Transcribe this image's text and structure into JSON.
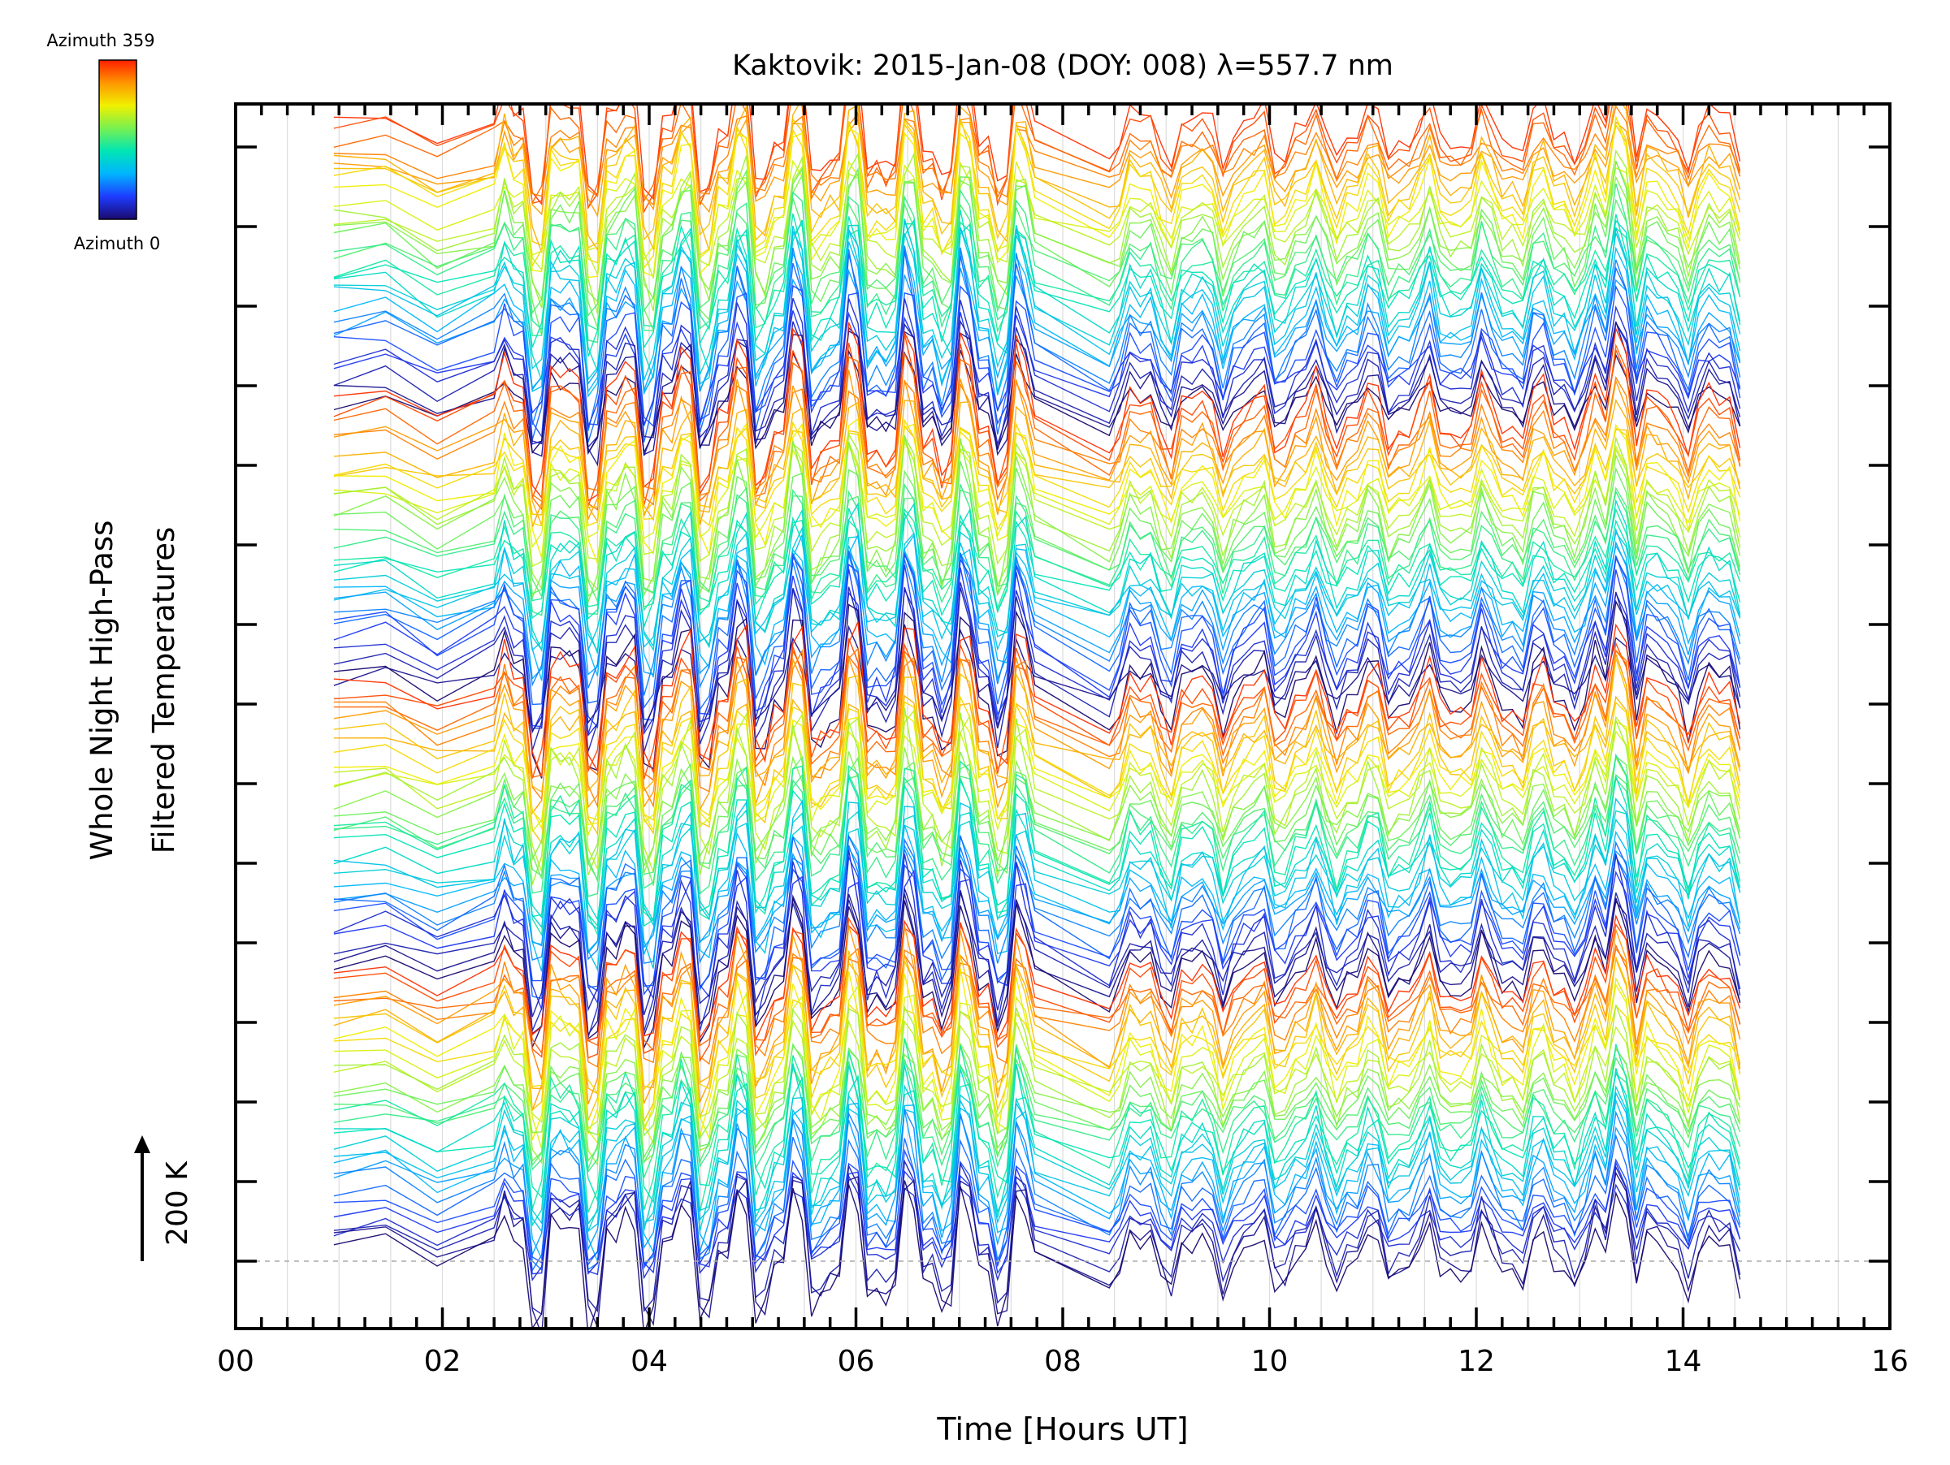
{
  "chart_data": {
    "type": "line",
    "title": "Kaktovik: 2015-Jan-08 (DOY: 008) λ=557.7 nm",
    "xlabel": "Time [Hours UT]",
    "ylabel_line1": "Whole Night High-Pass",
    "ylabel_line2": "Filtered Temperatures",
    "scale_label": "200 K",
    "xlim": [
      0,
      16
    ],
    "x_tick_labels": [
      "00",
      "02",
      "04",
      "06",
      "08",
      "10",
      "12",
      "14",
      "16"
    ],
    "x_ticks": [
      0,
      2,
      4,
      6,
      8,
      10,
      12,
      14,
      16
    ],
    "grid": "vertical, every 0.5 h",
    "colorbar": {
      "top_label": "Azimuth 359",
      "bottom_label": "Azimuth 0",
      "colormap": [
        "#1a0a6e",
        "#1e3cff",
        "#00b4ff",
        "#00e6b4",
        "#78f050",
        "#f0f000",
        "#ff9600",
        "#ff1e00"
      ]
    },
    "series_count": 124,
    "time_range_hours": [
      0.95,
      14.55
    ],
    "data_gap_hours": [
      7.75,
      8.45
    ]
  }
}
